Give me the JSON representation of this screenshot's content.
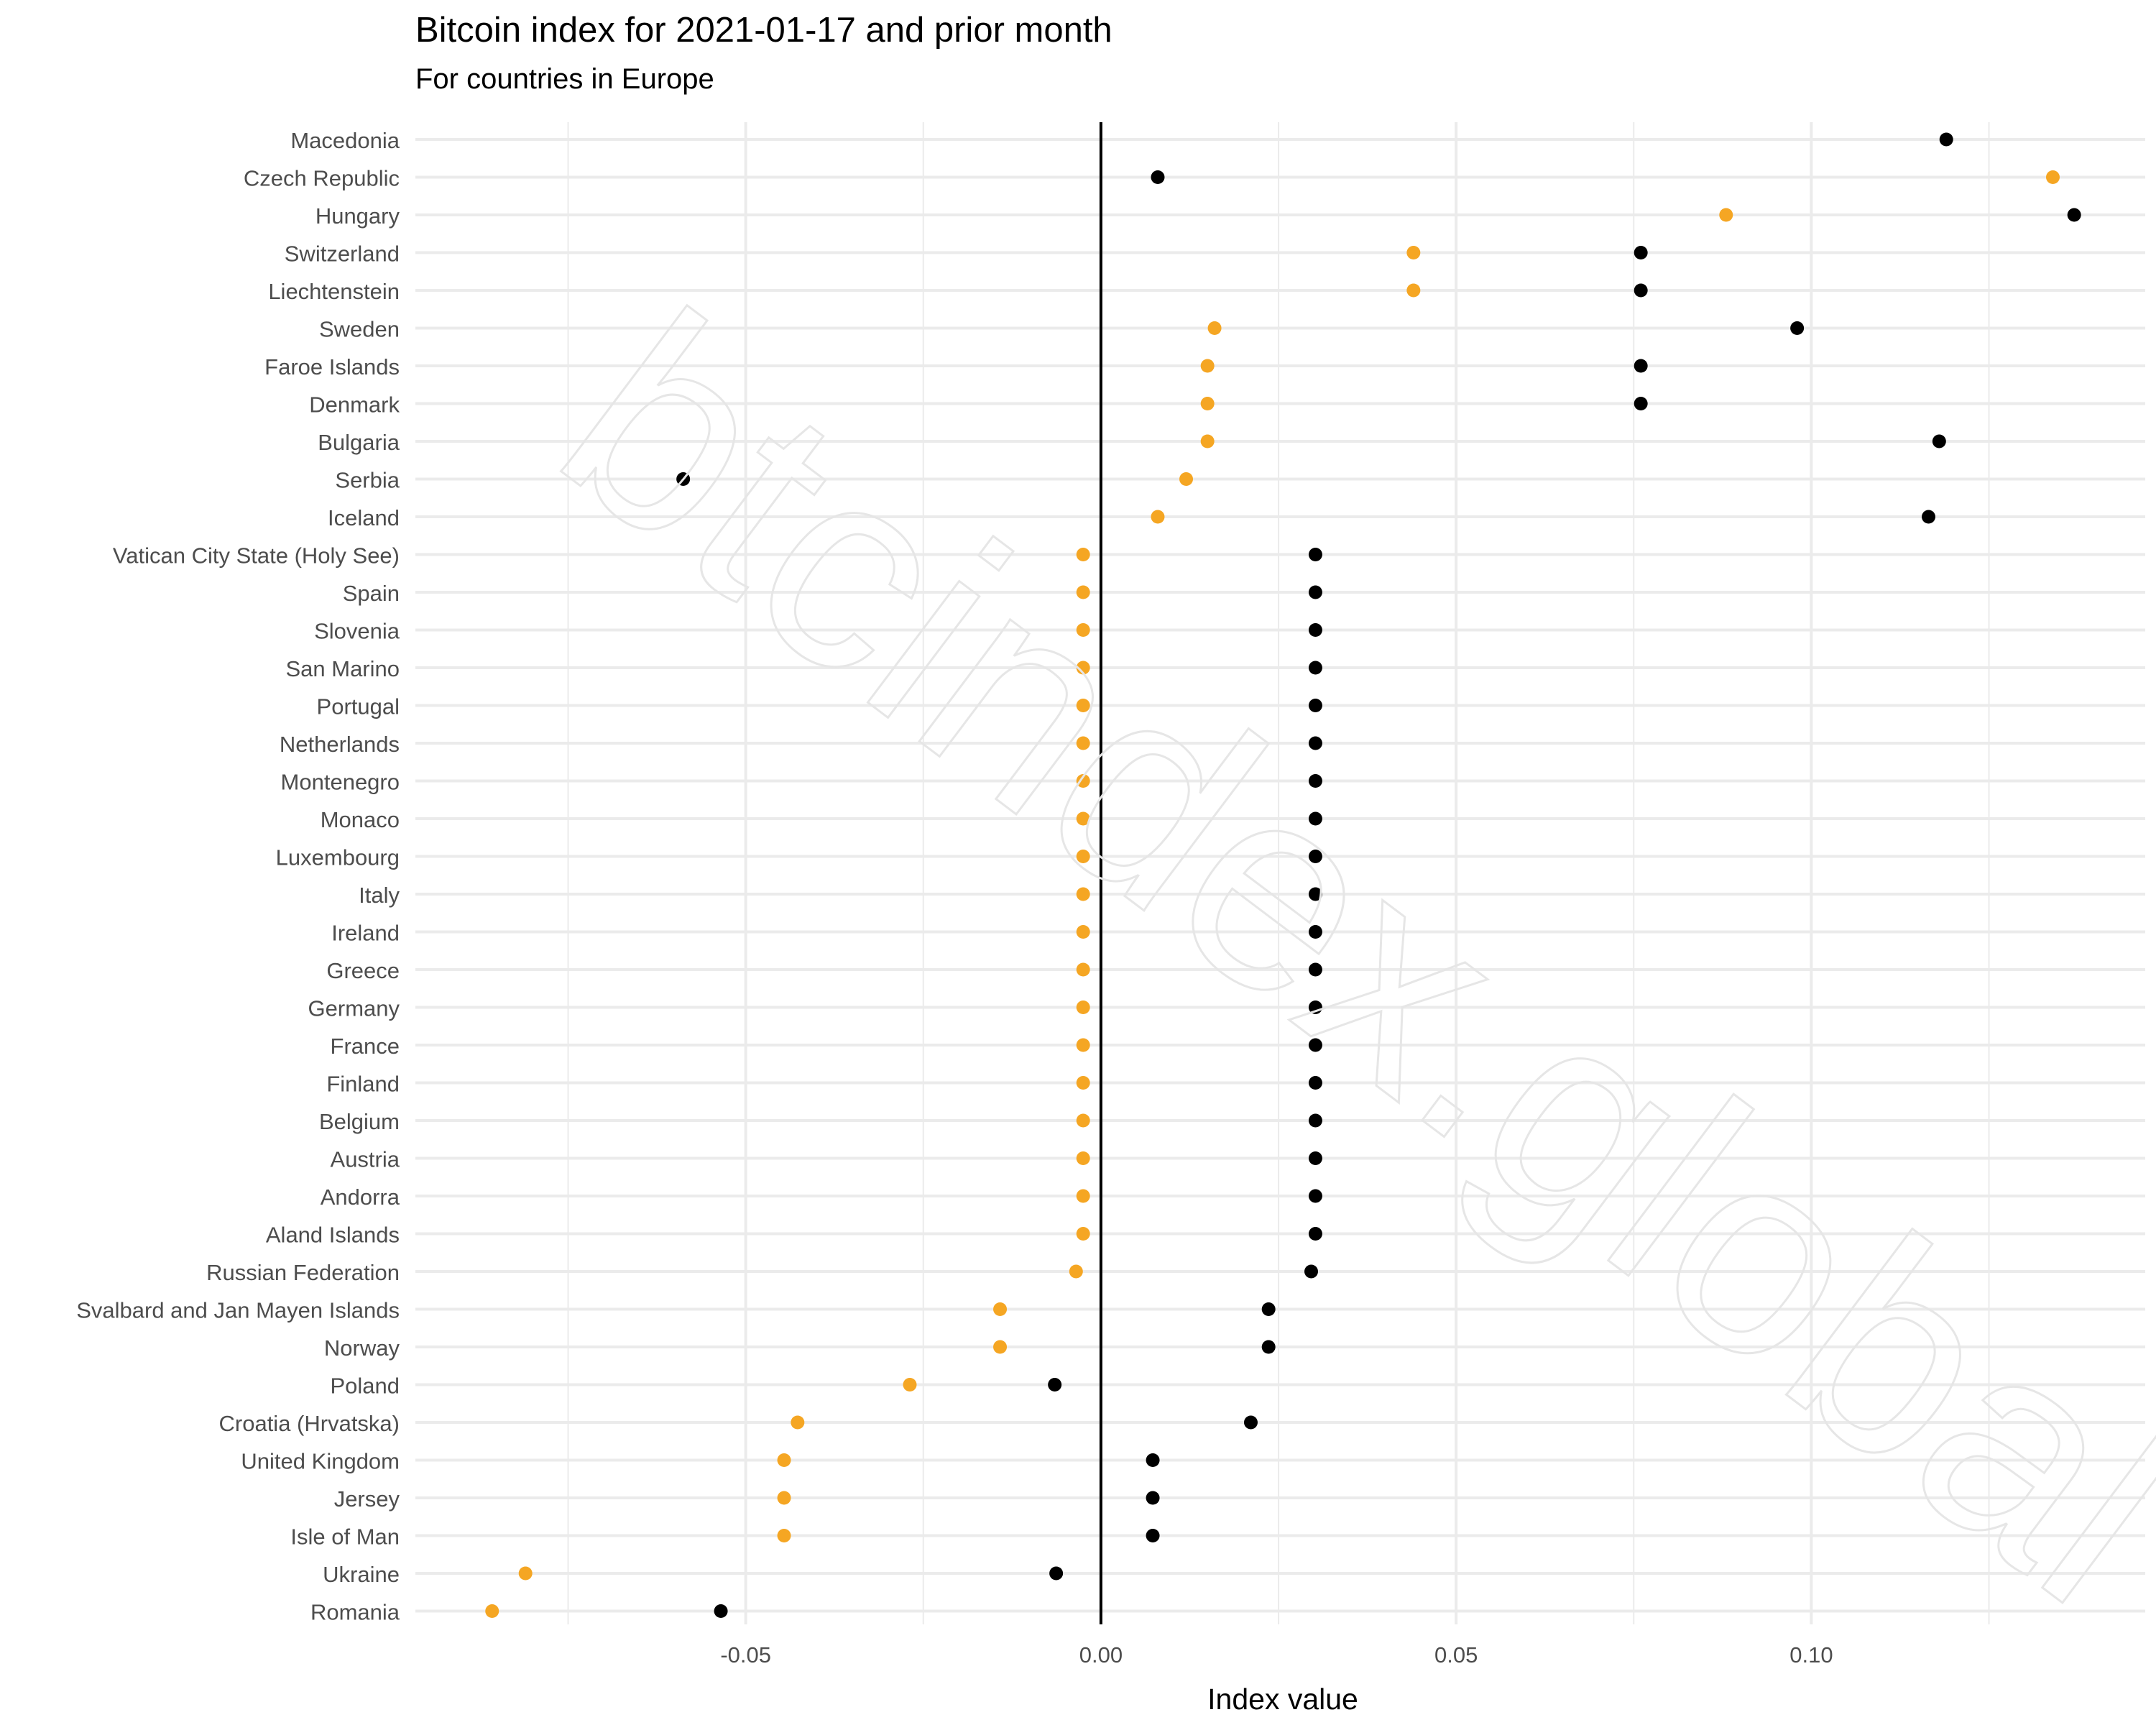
{
  "chart_data": {
    "type": "scatter",
    "title": "Bitcoin index for 2021-01-17 and prior month",
    "subtitle": "For countries in Europe",
    "xlabel": "Index value",
    "ylabel": "",
    "xlim": [
      -0.0965,
      0.147
    ],
    "xticks": [
      -0.05,
      0.0,
      0.05,
      0.1
    ],
    "xtick_labels": [
      "-0.05",
      "0.00",
      "0.05",
      "0.10"
    ],
    "watermark": "btcindex.global",
    "colors": {
      "series_a": "#F5A623",
      "series_b": "#000000",
      "zero_line": "#000000",
      "grid": "#EBEBEB"
    },
    "categories": [
      "Macedonia",
      "Czech Republic",
      "Hungary",
      "Switzerland",
      "Liechtenstein",
      "Sweden",
      "Faroe Islands",
      "Denmark",
      "Bulgaria",
      "Serbia",
      "Iceland",
      "Vatican City State (Holy See)",
      "Spain",
      "Slovenia",
      "San Marino",
      "Portugal",
      "Netherlands",
      "Montenegro",
      "Monaco",
      "Luxembourg",
      "Italy",
      "Ireland",
      "Greece",
      "Germany",
      "France",
      "Finland",
      "Belgium",
      "Austria",
      "Andorra",
      "Aland Islands",
      "Russian Federation",
      "Svalbard and Jan Mayen Islands",
      "Norway",
      "Poland",
      "Croatia (Hrvatska)",
      "United Kingdom",
      "Jersey",
      "Isle of Man",
      "Ukraine",
      "Romania"
    ],
    "series": [
      {
        "color": "#F5A623",
        "values": [
          null,
          0.134,
          0.088,
          0.044,
          0.044,
          0.016,
          0.015,
          0.015,
          0.015,
          0.012,
          0.008,
          -0.0025,
          -0.0025,
          -0.0025,
          -0.0025,
          -0.0025,
          -0.0025,
          -0.0025,
          -0.0025,
          -0.0025,
          -0.0025,
          -0.0025,
          -0.0025,
          -0.0025,
          -0.0025,
          -0.0025,
          -0.0025,
          -0.0025,
          -0.0025,
          -0.0025,
          -0.0035,
          -0.0142,
          -0.0142,
          -0.0269,
          -0.0427,
          -0.0446,
          -0.0446,
          -0.0446,
          -0.081,
          -0.0857
        ]
      },
      {
        "color": "#000000",
        "values": [
          0.119,
          0.008,
          0.137,
          0.076,
          0.076,
          0.098,
          0.076,
          0.076,
          0.118,
          -0.0588,
          0.1165,
          0.0302,
          0.0302,
          0.0302,
          0.0302,
          0.0302,
          0.0302,
          0.0302,
          0.0302,
          0.0302,
          0.0302,
          0.0302,
          0.0302,
          0.0302,
          0.0302,
          0.0302,
          0.0302,
          0.0302,
          0.0302,
          0.0302,
          0.0296,
          0.0236,
          0.0236,
          -0.0065,
          0.0211,
          0.0073,
          0.0073,
          0.0073,
          -0.0063,
          -0.0535
        ]
      }
    ]
  }
}
